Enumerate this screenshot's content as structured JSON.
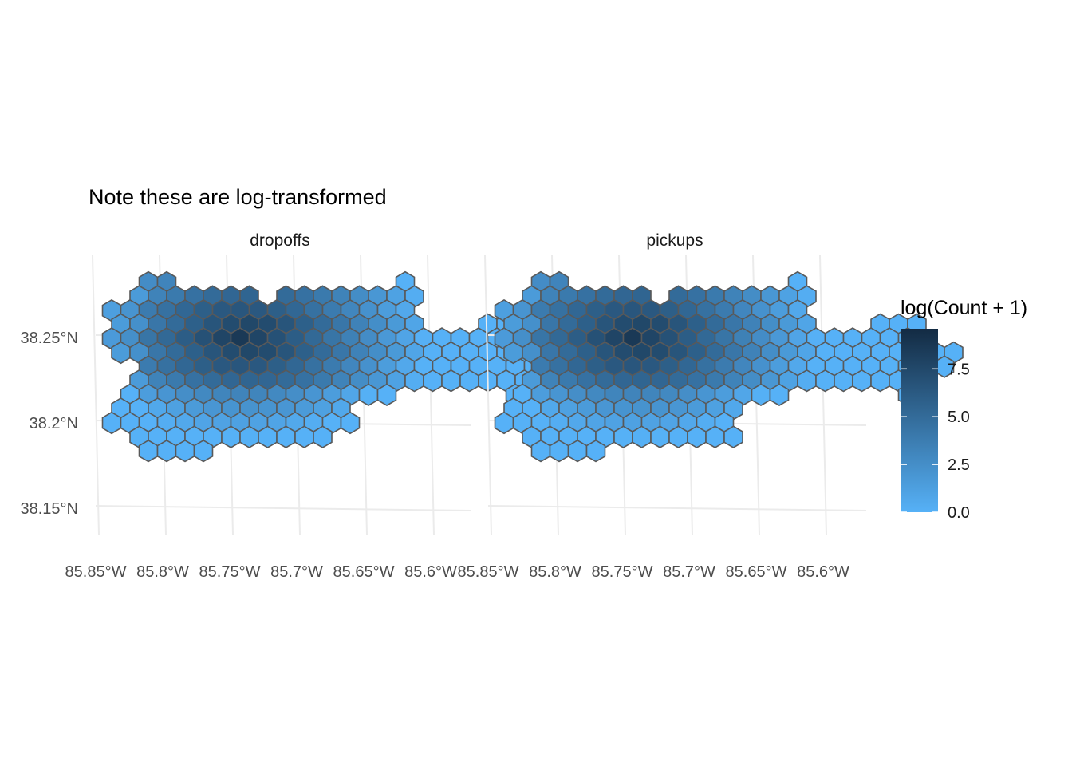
{
  "chart_data": {
    "type": "heatmap",
    "subtype": "hexbin-map",
    "title": "Note these are log-transformed",
    "facets": [
      "dropoffs",
      "pickups"
    ],
    "x_ticks": [
      "85.85°W",
      "85.8°W",
      "85.75°W",
      "85.7°W",
      "85.65°W",
      "85.6°W"
    ],
    "y_ticks": [
      "38.25°N",
      "38.2°N",
      "38.15°N"
    ],
    "x_tick_values": [
      -85.85,
      -85.8,
      -85.75,
      -85.7,
      -85.65,
      -85.6
    ],
    "y_tick_values": [
      38.25,
      38.2,
      38.15
    ],
    "grid": true,
    "legend": {
      "title": "log(Count + 1)",
      "position": "right",
      "ticks": [
        "0.0",
        "2.5",
        "5.0",
        "7.5"
      ],
      "tick_values": [
        0,
        2.5,
        5,
        7.5
      ],
      "range": [
        0,
        9.6
      ],
      "low_color": "#56B1F7",
      "high_color": "#132B43"
    },
    "hex_edge_color": "#595959",
    "hex_counts": {
      "dropoffs": [
        "..00............0..........",
        ".0000000.00000000..........",
        "00000000000000000..........",
        "00000000000000000...000....",
        "00000000000000000000000....",
        "0000000000000000000000000..",
        "..00000000000000000000000..",
        ".0000000000000000000000....",
        ".000000000000000......0....",
        "0000000000000..............",
        "00000000000000.............",
        ".00000000000...............",
        "..0000....................."
      ],
      "pickups": [
        "..00............0..........",
        ".0000000.00000000..........",
        "00000000000000000..........",
        "00000000000000000...000....",
        "00000000000000000000000....",
        "0000000000000000000000000..",
        "..00000000000000000000000..",
        ".0000000000000000000000....",
        ".000000000000000......0....",
        "0000000000000..............",
        "0000000000000..............",
        ".000000000000..............",
        "..0000....................."
      ]
    }
  }
}
